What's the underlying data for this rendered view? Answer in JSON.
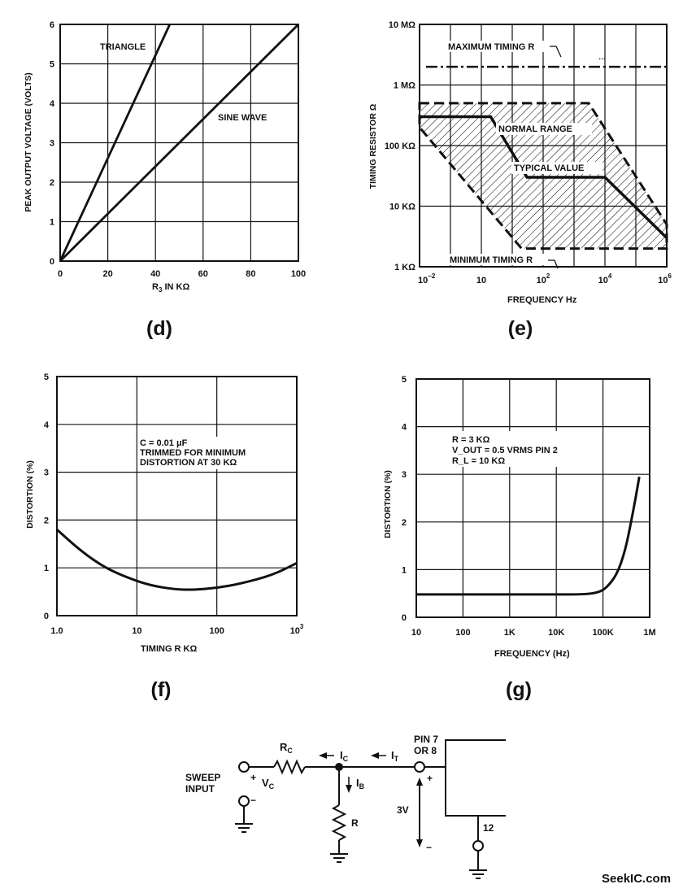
{
  "colors": {
    "ink": "#111111",
    "background": "#ffffff"
  },
  "chart_data": [
    {
      "id": "d",
      "panel_label": "(d)",
      "type": "line",
      "xlabel_main": "R",
      "xlabel_sub": "3",
      "xlabel_rest": " IN KΩ",
      "ylabel": "PEAK OUTPUT VOLTAGE (VOLTS)",
      "xlim": [
        0,
        100
      ],
      "ylim": [
        0,
        6
      ],
      "x_ticks": [
        "0",
        "20",
        "40",
        "60",
        "80",
        "100"
      ],
      "y_ticks": [
        "0",
        "1",
        "2",
        "3",
        "4",
        "5",
        "6"
      ],
      "series": [
        {
          "name": "TRIANGLE",
          "x": [
            0,
            46
          ],
          "y": [
            0,
            6
          ]
        },
        {
          "name": "SINE WAVE",
          "x": [
            0,
            100
          ],
          "y": [
            0,
            6
          ]
        }
      ]
    },
    {
      "id": "e",
      "panel_label": "(e)",
      "type": "area",
      "xscale": "log",
      "yscale": "log",
      "xlabel": "FREQUENCY Hz",
      "ylabel": "TIMING RESISTOR Ω",
      "xlim": [
        0.01,
        1000000
      ],
      "ylim": [
        1000,
        10000000
      ],
      "x_ticks": [
        {
          "base": "10",
          "exp": "−2"
        },
        {
          "base": "10",
          "exp": ""
        },
        {
          "base": "10",
          "exp": "2"
        },
        {
          "base": "10",
          "exp": "4"
        },
        {
          "base": "10",
          "exp": "6"
        }
      ],
      "y_ticks": [
        "1 KΩ",
        "10 KΩ",
        "100 KΩ",
        "1 MΩ",
        "10 MΩ"
      ],
      "maximum_timing_r": {
        "label": "MAXIMUM TIMING R",
        "value": 2000000
      },
      "minimum_timing_r": {
        "label": "MINIMUM TIMING R"
      },
      "normal_range": {
        "label": "NORMAL RANGE",
        "outline": [
          [
            0.01,
            500000
          ],
          [
            3000,
            500000
          ],
          [
            1000000,
            5000
          ],
          [
            1000000,
            2000
          ],
          [
            20,
            2000
          ],
          [
            0.01,
            200000
          ]
        ]
      },
      "typical_value": {
        "label": "TYPICAL VALUE",
        "x": [
          0.01,
          2,
          30,
          10000,
          1000000
        ],
        "y": [
          300000,
          300000,
          30000,
          30000,
          3000
        ]
      }
    },
    {
      "id": "f",
      "panel_label": "(f)",
      "type": "line",
      "xscale": "log",
      "xlabel": "TIMING R KΩ",
      "ylabel": "DISTORTION (%)",
      "xlim": [
        1,
        1000
      ],
      "ylim": [
        0,
        5
      ],
      "x_ticks": [
        {
          "base": "1.0",
          "exp": ""
        },
        {
          "base": "10",
          "exp": ""
        },
        {
          "base": "100",
          "exp": ""
        },
        {
          "base": "10",
          "exp": "3"
        }
      ],
      "y_ticks": [
        "0",
        "1",
        "2",
        "3",
        "4",
        "5"
      ],
      "annotation": [
        "C = 0.01 μF",
        "TRIMMED FOR MINIMUM",
        "DISTORTION AT 30 KΩ"
      ],
      "series": [
        {
          "name": "distortion",
          "x": [
            1,
            2,
            4,
            8,
            15,
            30,
            50,
            100,
            200,
            500,
            1000
          ],
          "y": [
            1.8,
            1.35,
            1.0,
            0.78,
            0.63,
            0.55,
            0.54,
            0.58,
            0.67,
            0.85,
            1.1
          ]
        }
      ]
    },
    {
      "id": "g",
      "panel_label": "(g)",
      "type": "line",
      "xscale": "log",
      "xlabel": "FREQUENCY (Hz)",
      "ylabel": "DISTORTION (%)",
      "xlim": [
        10,
        1000000
      ],
      "ylim": [
        0,
        5
      ],
      "x_ticks": [
        {
          "base": "10",
          "exp": ""
        },
        {
          "base": "100",
          "exp": ""
        },
        {
          "base": "1K",
          "exp": ""
        },
        {
          "base": "10K",
          "exp": ""
        },
        {
          "base": "100K",
          "exp": ""
        },
        {
          "base": "1M",
          "exp": ""
        }
      ],
      "y_ticks": [
        "0",
        "1",
        "2",
        "3",
        "4",
        "5"
      ],
      "annotation": [
        "R = 3 KΩ",
        "V_OUT = 0.5 VRMS PIN 2",
        "R_L = 10 KΩ"
      ],
      "series": [
        {
          "name": "distortion",
          "x": [
            10,
            1000,
            10000,
            40000,
            80000,
            120000,
            200000,
            300000,
            400000,
            500000,
            600000
          ],
          "y": [
            0.48,
            0.48,
            0.48,
            0.48,
            0.52,
            0.62,
            0.9,
            1.4,
            2.0,
            2.5,
            2.95
          ]
        }
      ]
    }
  ],
  "schematic": {
    "sweep_input": [
      "SWEEP",
      "INPUT"
    ],
    "rc_main": "R",
    "rc_sub": "C",
    "vc_main": "V",
    "vc_sub": "C",
    "ic_main": "I",
    "ic_sub": "C",
    "it_main": "I",
    "it_sub": "T",
    "ib_main": "I",
    "ib_sub": "B",
    "r_label": "R",
    "pin_label": [
      "PIN 7",
      "OR 8"
    ],
    "voltage_label": "3V",
    "pin12_label": "12",
    "plus": "+",
    "minus": "−"
  },
  "watermark": "SeekIC.com"
}
